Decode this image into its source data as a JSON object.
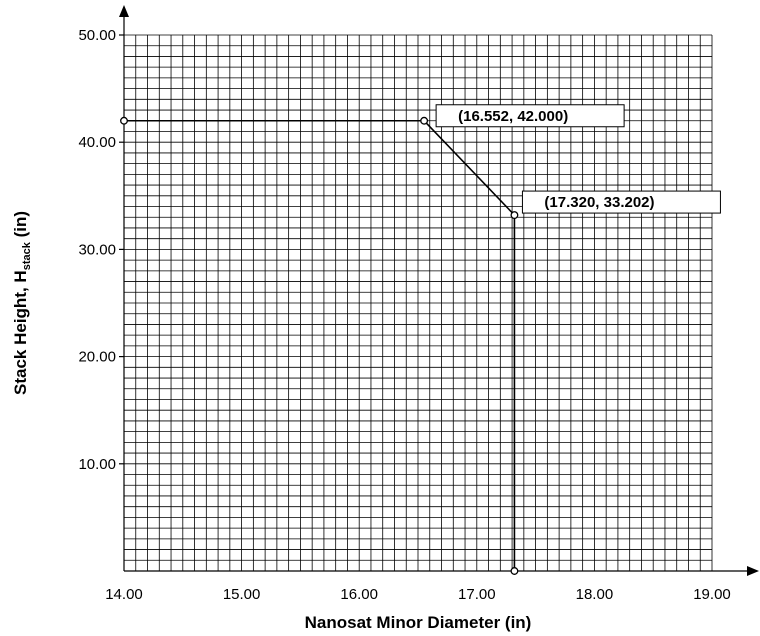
{
  "chart_data": {
    "type": "line",
    "title": "",
    "xlabel": "Nanosat Minor Diameter (in)",
    "ylabel": {
      "main": "Stack Height, H",
      "sub": "stack",
      "suffix": " (in)"
    },
    "xlim": [
      14.0,
      19.0
    ],
    "ylim": [
      0,
      50
    ],
    "x_ticks": [
      "14.00",
      "15.00",
      "16.00",
      "17.00",
      "18.00",
      "19.00"
    ],
    "y_ticks": [
      "10.00",
      "20.00",
      "30.00",
      "40.00",
      "50.00"
    ],
    "grid": true,
    "series": [
      {
        "x": [
          14.0,
          16.552,
          17.32,
          17.32
        ],
        "y": [
          42.0,
          42.0,
          33.202,
          0.0
        ]
      }
    ],
    "annotations": [
      {
        "label": "(16.552, 42.000)",
        "x": 16.552,
        "y": 42.0
      },
      {
        "label": "(17.320, 33.202)",
        "x": 17.32,
        "y": 33.202
      }
    ],
    "line_color": "#000000",
    "grid_color": "#000000"
  }
}
